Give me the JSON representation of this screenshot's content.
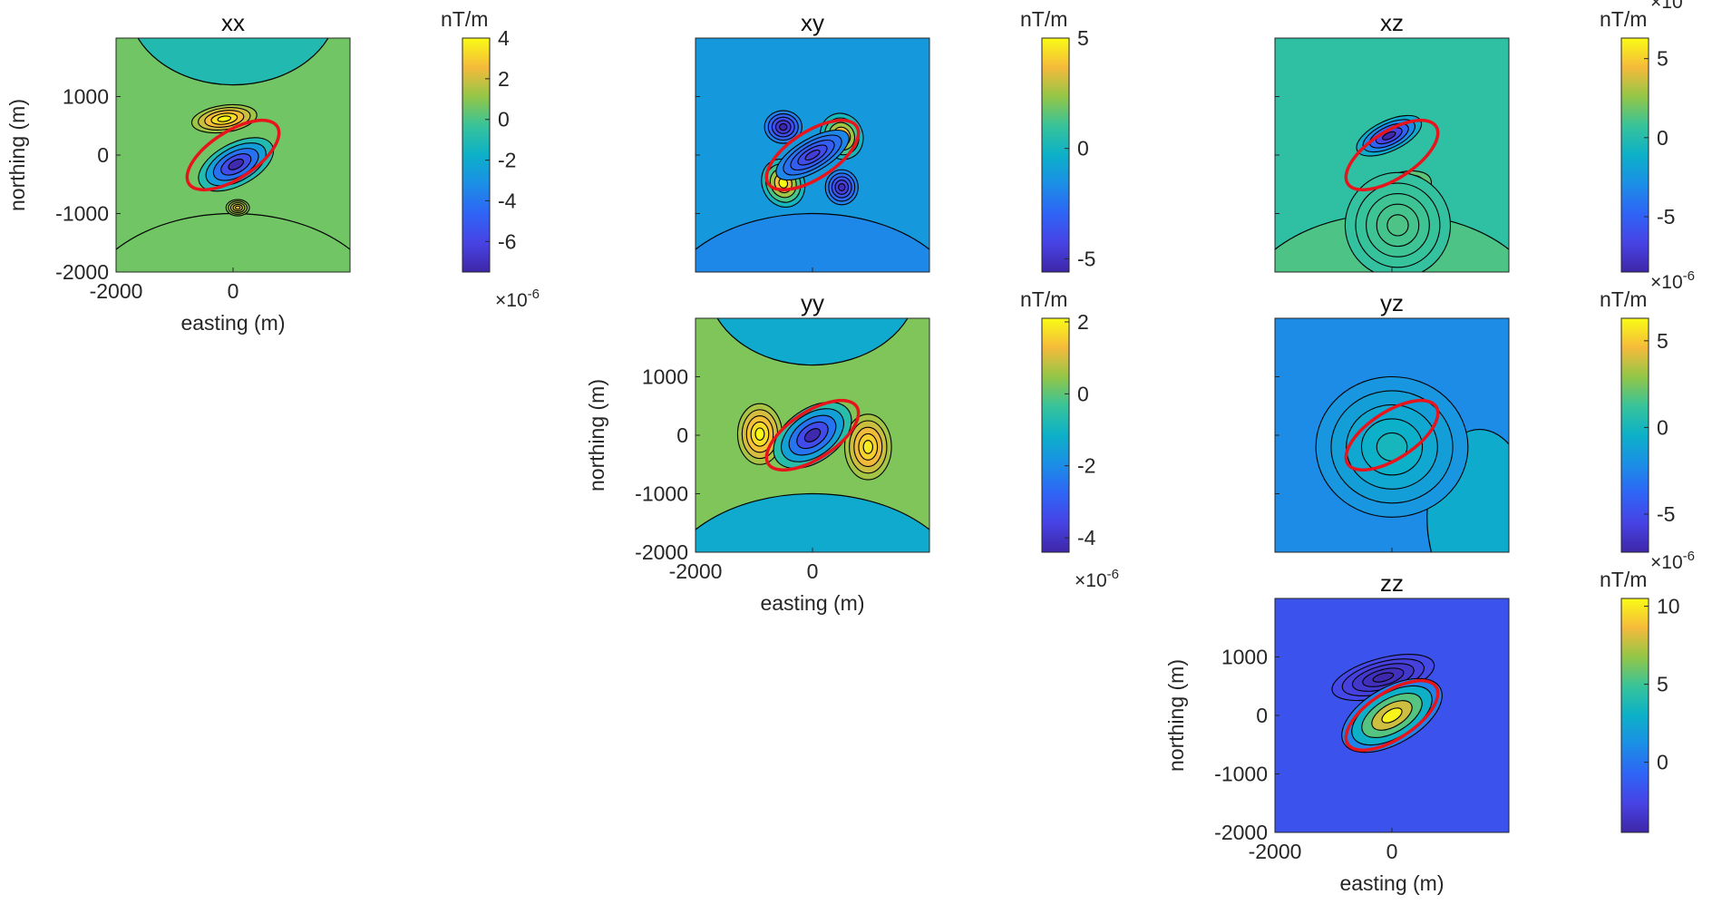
{
  "chart_data": {
    "type": "contour",
    "multiplier": "×10",
    "multiplier_exponent": "-6",
    "unit": "nT/m",
    "x_axis": {
      "label": "easting (m)",
      "range": [
        -2000,
        2000
      ],
      "ticks": [
        -2000,
        0
      ]
    },
    "y_axis": {
      "label": "northing (m)",
      "range": [
        -2000,
        2000
      ],
      "ticks": [
        -2000,
        -1000,
        0,
        1000
      ]
    },
    "source_outline": {
      "color": "#e8141c",
      "center": [
        0,
        0
      ],
      "semi_major": 900,
      "semi_minor": 400,
      "angle_deg": -33
    },
    "panels": [
      {
        "title": "xx",
        "colorbar": {
          "min": -7.5,
          "max": 4,
          "ticks": [
            -6,
            -4,
            -2,
            0,
            2,
            4
          ]
        },
        "background": 0.6,
        "edge_lobes": [
          {
            "side": "top",
            "value": -1
          },
          {
            "side": "bottom",
            "value": 0.6
          }
        ]
      },
      {
        "title": "xy",
        "colorbar": {
          "min": -5.6,
          "max": 5,
          "ticks": [
            -5,
            0,
            5
          ]
        },
        "background": -1.2,
        "edge_lobes": [
          {
            "side": "bottom",
            "value": -1.8
          }
        ]
      },
      {
        "title": "xz",
        "colorbar": {
          "min": -8.5,
          "max": 6.3,
          "ticks": [
            -5,
            0,
            5
          ]
        },
        "background": 0.4,
        "edge_lobes": [
          {
            "side": "bottom",
            "value": 1.2
          }
        ]
      },
      {
        "title": "yy",
        "colorbar": {
          "min": -4.4,
          "max": 2.1,
          "ticks": [
            -4,
            -2,
            0,
            2
          ]
        },
        "background": 0.3,
        "edge_lobes": [
          {
            "side": "top",
            "value": -1.3
          },
          {
            "side": "bottom",
            "value": -1.3
          }
        ]
      },
      {
        "title": "yz",
        "colorbar": {
          "min": -7.2,
          "max": 6.3,
          "ticks": [
            -5,
            0,
            5
          ]
        },
        "background": -2.2,
        "edge_lobes": [
          {
            "side": "right",
            "value": -0.7
          }
        ]
      },
      {
        "title": "zz",
        "colorbar": {
          "min": -4.5,
          "max": 10.5,
          "ticks": [
            0,
            5,
            10
          ]
        },
        "background": -1.8,
        "edge_lobes": []
      }
    ]
  }
}
